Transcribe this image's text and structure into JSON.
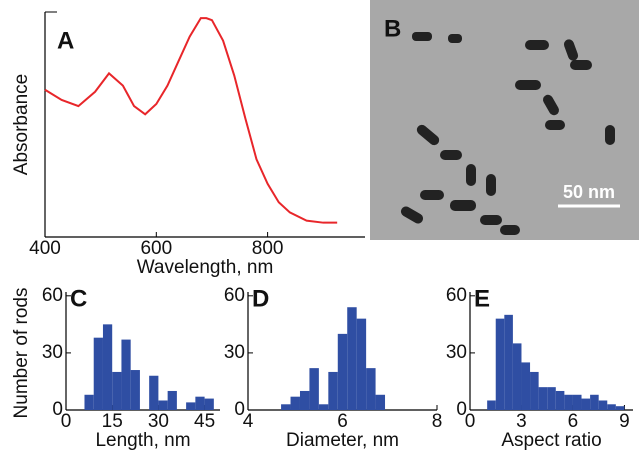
{
  "chart_data": [
    {
      "type": "line",
      "label": "A",
      "xlabel": "Wavelength, nm",
      "ylabel": "Absorbance",
      "color": "#e8262a",
      "x": [
        400,
        430,
        460,
        490,
        515,
        540,
        560,
        580,
        600,
        620,
        640,
        660,
        680,
        690,
        700,
        720,
        740,
        760,
        780,
        800,
        820,
        840,
        870,
        900,
        925
      ],
      "values": [
        0.65,
        0.6,
        0.57,
        0.64,
        0.73,
        0.67,
        0.57,
        0.53,
        0.58,
        0.67,
        0.79,
        0.91,
        1.0,
        1.0,
        0.99,
        0.89,
        0.72,
        0.51,
        0.31,
        0.19,
        0.1,
        0.05,
        0.01,
        0,
        0
      ],
      "xlim": [
        400,
        975
      ],
      "ylim": [
        -0.07,
        1.03
      ],
      "xticks": [
        400,
        600,
        800
      ]
    },
    {
      "type": "image",
      "label": "B",
      "scale_label": "50 nm"
    },
    {
      "type": "histogram",
      "label": "C",
      "xlabel": "Length, nm",
      "ylabel": "Number of rods",
      "color": "#2f4ea3",
      "bins": [
        6,
        9,
        12,
        15,
        18,
        21,
        24,
        27,
        30,
        33,
        36,
        39,
        42,
        45,
        48
      ],
      "values": [
        8,
        38,
        45,
        20,
        37,
        21,
        0,
        18,
        5,
        10,
        0,
        4,
        7,
        6
      ],
      "xlim": [
        0,
        50
      ],
      "ylim": [
        0,
        62
      ],
      "xticks": [
        0,
        15,
        30,
        45
      ],
      "yticks": [
        0,
        30,
        60
      ]
    },
    {
      "type": "histogram",
      "label": "D",
      "xlabel": "Diameter, nm",
      "color": "#2f4ea3",
      "bins": [
        4.7,
        4.9,
        5.1,
        5.3,
        5.5,
        5.7,
        5.9,
        6.1,
        6.3,
        6.5,
        6.7,
        6.9
      ],
      "values": [
        3,
        7,
        10,
        22,
        3,
        20,
        40,
        54,
        48,
        22,
        8
      ],
      "xlim": [
        4,
        8
      ],
      "ylim": [
        0,
        62
      ],
      "xticks": [
        4,
        6,
        8
      ],
      "yticks": [
        0,
        30,
        60
      ]
    },
    {
      "type": "histogram",
      "label": "E",
      "xlabel": "Aspect ratio",
      "color": "#2f4ea3",
      "bins": [
        1,
        1.5,
        2,
        2.5,
        3,
        3.5,
        4,
        4.5,
        5,
        5.5,
        6,
        6.5,
        7,
        7.5,
        8,
        8.5,
        9
      ],
      "values": [
        5,
        48,
        50,
        35,
        25,
        20,
        12,
        12,
        10,
        8,
        8,
        6,
        8,
        5,
        3,
        2
      ],
      "xlim": [
        0,
        9.5
      ],
      "ylim": [
        0,
        62
      ],
      "xticks": [
        0,
        3,
        6,
        9
      ],
      "yticks": [
        0,
        30,
        60
      ]
    }
  ]
}
